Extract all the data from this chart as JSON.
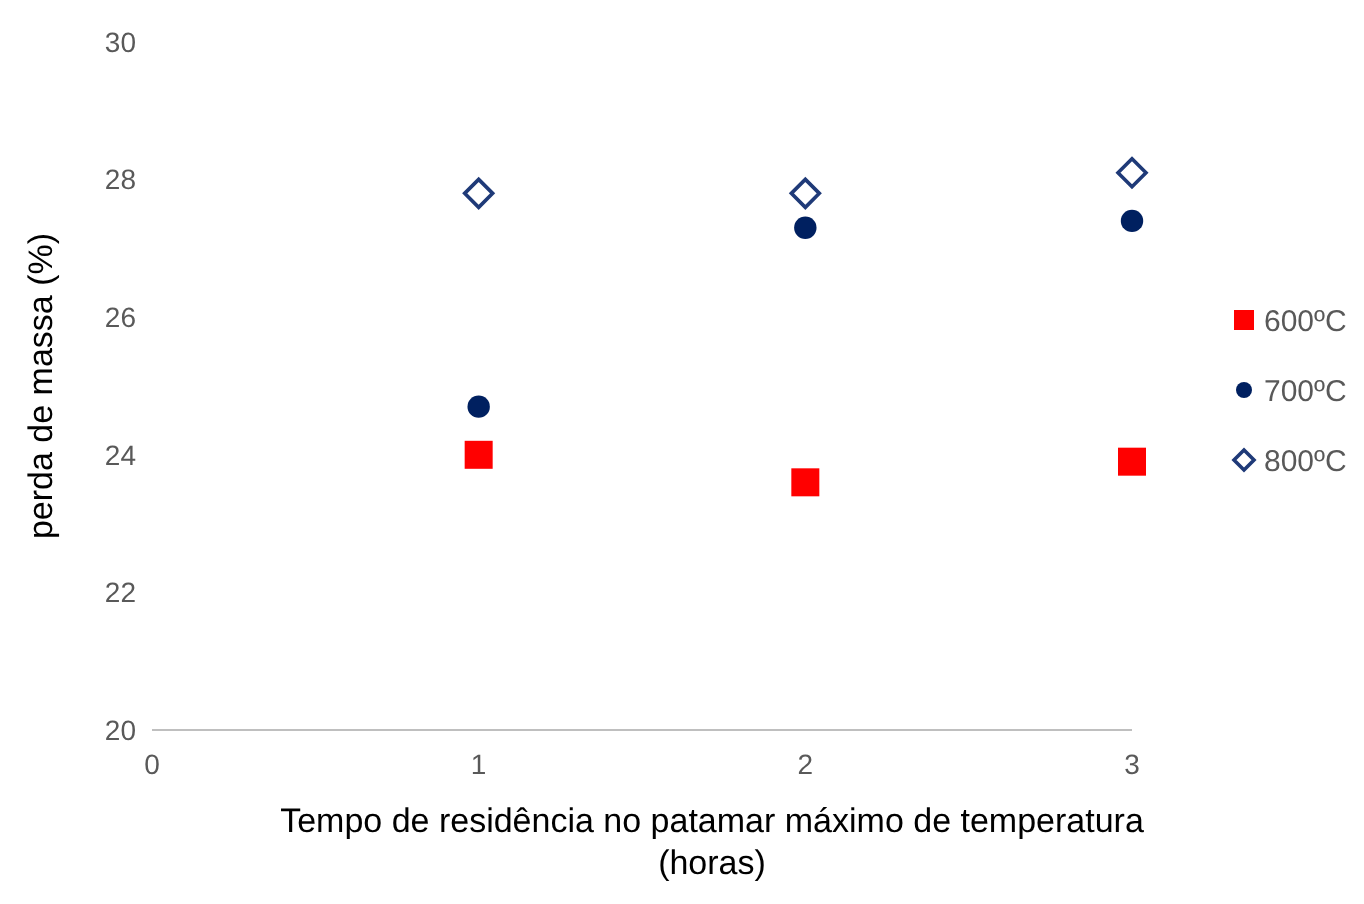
{
  "chart_data": {
    "type": "scatter",
    "xlabel": "Tempo de residência no patamar máximo de temperatura\n(horas)",
    "ylabel": "perda de massa (%)",
    "xlim": [
      0,
      3
    ],
    "xticks": [
      0,
      1,
      2,
      3
    ],
    "ylim": [
      20,
      30
    ],
    "yticks": [
      20,
      22,
      24,
      26,
      28,
      30
    ],
    "grid": false,
    "legend": "right",
    "x": [
      1,
      2,
      3
    ],
    "series": [
      {
        "name": "600ºC",
        "color": "#ff0000",
        "marker": "square",
        "values": [
          24.0,
          23.6,
          23.9
        ]
      },
      {
        "name": "700ºC",
        "color": "#002060",
        "marker": "circle",
        "values": [
          24.7,
          27.3,
          27.4
        ]
      },
      {
        "name": "800ºC",
        "color": "#1f3a78",
        "marker": "diamond",
        "values": [
          27.8,
          27.8,
          28.1
        ]
      }
    ]
  }
}
